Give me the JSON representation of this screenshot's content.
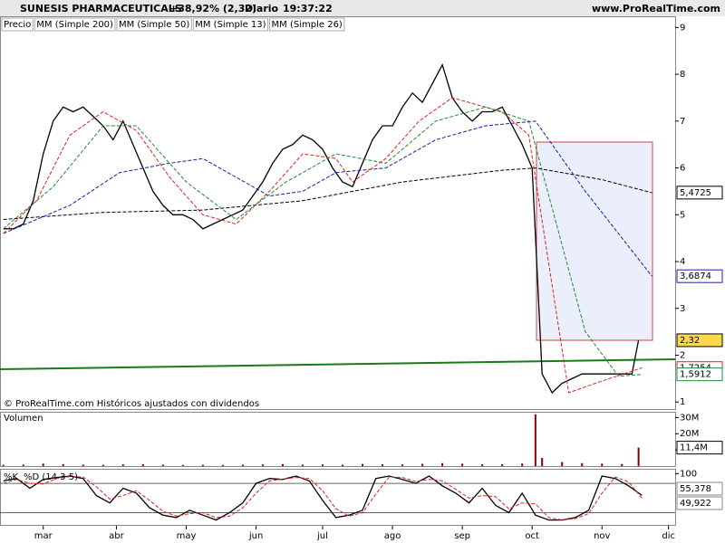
{
  "header": {
    "title": "SUNESIS PHARMACEUTICALS",
    "change": "+38,92% (2,32)",
    "period": "Diario",
    "time": "19:37:22",
    "site": "www.ProRealTime.com"
  },
  "legend": [
    "Precio",
    "MM (Simple 200)",
    "MM (Simple 50)",
    "MM (Simple 13)",
    "MM (Simple 26)"
  ],
  "copyright": "© ProRealTime.com  Históricos ajustados con dividendos",
  "volume_title": "Volumen",
  "stoch_title": [
    "%K",
    "%D (14 3 5)"
  ],
  "chart_data": [
    {
      "type": "line",
      "xlim": [
        -1,
        202
      ],
      "xticks": [
        {
          "value": 12,
          "label": "mar"
        },
        {
          "value": 34,
          "label": "abr"
        },
        {
          "value": 55,
          "label": "may"
        },
        {
          "value": 76,
          "label": "jun"
        },
        {
          "value": 96,
          "label": "jul"
        },
        {
          "value": 117,
          "label": "ago"
        },
        {
          "value": 138,
          "label": "sep"
        },
        {
          "value": 159,
          "label": "oct"
        },
        {
          "value": 180,
          "label": "nov"
        },
        {
          "value": 200,
          "label": "dic"
        }
      ],
      "ylim": [
        0.85,
        9.2
      ],
      "yticks": [
        1,
        2,
        3,
        4,
        5,
        6,
        7,
        8,
        9
      ],
      "series": [
        {
          "name": "Precio",
          "color": "#000000",
          "dash": false,
          "x": [
            0,
            3,
            6,
            9,
            12,
            15,
            18,
            21,
            24,
            27,
            30,
            33,
            36,
            39,
            42,
            45,
            48,
            51,
            54,
            57,
            60,
            63,
            66,
            69,
            72,
            75,
            78,
            81,
            84,
            87,
            90,
            93,
            96,
            99,
            102,
            105,
            108,
            111,
            114,
            117,
            120,
            123,
            126,
            129,
            132,
            135,
            138,
            141,
            144,
            147,
            150,
            153,
            156,
            159,
            162,
            165,
            168,
            171,
            174,
            177,
            180,
            183,
            186,
            189,
            191
          ],
          "values": [
            4.7,
            4.7,
            4.8,
            5.3,
            6.3,
            7.0,
            7.3,
            7.2,
            7.3,
            7.1,
            6.9,
            6.6,
            7.0,
            6.5,
            6.0,
            5.5,
            5.2,
            5.0,
            5.0,
            4.9,
            4.7,
            4.8,
            4.9,
            5.0,
            5.1,
            5.4,
            5.7,
            6.1,
            6.4,
            6.5,
            6.7,
            6.6,
            6.4,
            6.0,
            5.7,
            5.6,
            6.1,
            6.6,
            6.9,
            6.9,
            7.3,
            7.6,
            7.4,
            7.8,
            8.2,
            7.5,
            7.2,
            7.0,
            7.2,
            7.2,
            7.3,
            6.9,
            6.5,
            6.0,
            1.6,
            1.2,
            1.4,
            1.5,
            1.6,
            1.6,
            1.6,
            1.6,
            1.6,
            1.6,
            2.32
          ]
        },
        {
          "name": "MM (Simple 200)",
          "color": "#000000",
          "dash": true,
          "x": [
            0,
            30,
            60,
            90,
            120,
            150,
            160,
            180,
            195
          ],
          "values": [
            4.9,
            5.05,
            5.1,
            5.3,
            5.7,
            5.95,
            6.0,
            5.75,
            5.47
          ]
        },
        {
          "name": "MM (Simple 50)",
          "color": "#1c1ca8",
          "dash": true,
          "x": [
            0,
            20,
            35,
            50,
            60,
            70,
            80,
            90,
            100,
            115,
            130,
            145,
            160,
            175,
            195
          ],
          "values": [
            4.6,
            5.2,
            5.9,
            6.1,
            6.2,
            5.8,
            5.4,
            5.5,
            5.9,
            6.0,
            6.6,
            6.9,
            7.0,
            5.5,
            3.69
          ]
        },
        {
          "name": "MM (Simple 13)",
          "color": "#e02020",
          "dash": true,
          "x": [
            0,
            10,
            20,
            30,
            40,
            50,
            60,
            70,
            80,
            90,
            100,
            105,
            115,
            125,
            135,
            150,
            158,
            170,
            180,
            192
          ],
          "values": [
            4.6,
            5.3,
            6.7,
            7.2,
            6.8,
            5.8,
            5.0,
            4.8,
            5.5,
            6.3,
            6.2,
            5.7,
            6.2,
            7.0,
            7.5,
            7.2,
            6.7,
            1.2,
            1.45,
            1.73
          ]
        },
        {
          "name": "MM (Simple 26)",
          "color": "#1a8a3a",
          "dash": true,
          "x": [
            0,
            15,
            30,
            40,
            55,
            70,
            85,
            100,
            115,
            130,
            145,
            158,
            175,
            185,
            192
          ],
          "values": [
            4.7,
            5.6,
            6.9,
            6.9,
            5.7,
            4.9,
            5.7,
            6.3,
            6.1,
            7.0,
            7.3,
            7.0,
            2.5,
            1.55,
            1.59
          ]
        }
      ],
      "price_labels": [
        {
          "value": 5.4725,
          "label": "5,4725",
          "color": "#000000"
        },
        {
          "value": 3.6874,
          "label": "3,6874",
          "color": "#1c1ca8"
        },
        {
          "value": 2.32,
          "label": "2,32",
          "color": "#000000"
        },
        {
          "value": 1.7254,
          "label": "1,7254",
          "color": "#e02020"
        },
        {
          "value": 1.5912,
          "label": "1,5912",
          "color": "#1a8a3a"
        }
      ]
    },
    {
      "type": "bar",
      "xlim": [
        -1,
        202
      ],
      "ylim": [
        0,
        33000000
      ],
      "yticks": [
        {
          "value": 10000000,
          "label": "10M"
        },
        {
          "value": 20000000,
          "label": "20M"
        },
        {
          "value": 30000000,
          "label": "30M"
        }
      ],
      "color": "#8b0000",
      "x": [
        0,
        6,
        12,
        18,
        24,
        30,
        36,
        42,
        48,
        54,
        60,
        66,
        72,
        78,
        84,
        90,
        96,
        102,
        108,
        114,
        120,
        126,
        132,
        138,
        144,
        150,
        156,
        160,
        162,
        168,
        174,
        180,
        186,
        191
      ],
      "values": [
        800000,
        900000,
        1500000,
        1200000,
        900000,
        800000,
        1000000,
        1100000,
        900000,
        700000,
        800000,
        700000,
        900000,
        1000000,
        1200000,
        900000,
        1000000,
        800000,
        1300000,
        1100000,
        1000000,
        1400000,
        1800000,
        1500000,
        1100000,
        1200000,
        1600000,
        32000000,
        5000000,
        2500000,
        1800000,
        1500000,
        1300000,
        11400000
      ],
      "value_labels": {
        "33": "11,4M"
      }
    },
    {
      "type": "line",
      "xlim": [
        -1,
        202
      ],
      "ylim": [
        -5,
        108
      ],
      "yticks": [
        100
      ],
      "levels": [
        20,
        80
      ],
      "series": [
        {
          "name": "%K",
          "color": "#000000",
          "dash": false,
          "x": [
            0,
            4,
            8,
            12,
            16,
            20,
            24,
            28,
            32,
            36,
            40,
            44,
            48,
            52,
            56,
            60,
            64,
            68,
            72,
            76,
            80,
            84,
            88,
            92,
            96,
            100,
            104,
            108,
            112,
            116,
            120,
            124,
            128,
            132,
            136,
            140,
            144,
            148,
            152,
            156,
            160,
            164,
            168,
            172,
            176,
            180,
            184,
            188,
            192
          ],
          "values": [
            85,
            90,
            70,
            88,
            92,
            95,
            90,
            55,
            40,
            70,
            60,
            30,
            15,
            10,
            25,
            15,
            5,
            20,
            40,
            80,
            90,
            88,
            95,
            85,
            45,
            10,
            15,
            25,
            90,
            95,
            88,
            80,
            95,
            75,
            60,
            40,
            70,
            35,
            20,
            60,
            15,
            5,
            5,
            10,
            25,
            95,
            90,
            75,
            55.378
          ]
        },
        {
          "name": "%D (14 3 5)",
          "color": "#e02020",
          "dash": true,
          "x": [
            0,
            4,
            8,
            12,
            16,
            20,
            24,
            28,
            32,
            36,
            40,
            44,
            48,
            52,
            56,
            60,
            64,
            68,
            72,
            76,
            80,
            84,
            88,
            92,
            96,
            100,
            104,
            108,
            112,
            116,
            120,
            124,
            128,
            132,
            136,
            140,
            144,
            148,
            152,
            156,
            160,
            164,
            168,
            172,
            176,
            180,
            184,
            188,
            192
          ],
          "values": [
            80,
            88,
            80,
            79,
            90,
            94,
            93,
            73,
            48,
            55,
            65,
            45,
            23,
            13,
            18,
            20,
            10,
            13,
            30,
            60,
            85,
            89,
            92,
            90,
            65,
            28,
            13,
            20,
            58,
            93,
            92,
            84,
            88,
            85,
            68,
            50,
            55,
            53,
            28,
            40,
            38,
            10,
            5,
            8,
            18,
            60,
            93,
            83,
            49.922
          ]
        }
      ],
      "value_labels": [
        {
          "value": 55.378,
          "label": "55,378"
        },
        {
          "value": 49.922,
          "label": "49,922"
        }
      ]
    }
  ]
}
